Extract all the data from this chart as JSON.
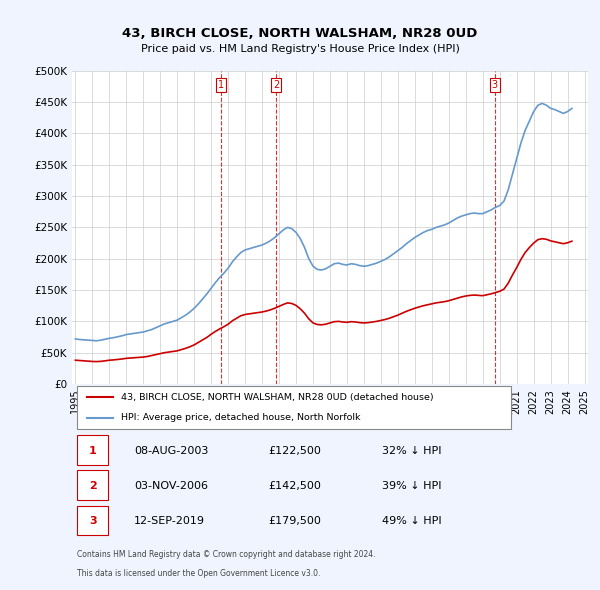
{
  "title": "43, BIRCH CLOSE, NORTH WALSHAM, NR28 0UD",
  "subtitle": "Price paid vs. HM Land Registry's House Price Index (HPI)",
  "legend_line1": "43, BIRCH CLOSE, NORTH WALSHAM, NR28 0UD (detached house)",
  "legend_line2": "HPI: Average price, detached house, North Norfolk",
  "footer1": "Contains HM Land Registry data © Crown copyright and database right 2024.",
  "footer2": "This data is licensed under the Open Government Licence v3.0.",
  "table": [
    {
      "num": "1",
      "date": "08-AUG-2003",
      "price": "£122,500",
      "pct": "32% ↓ HPI"
    },
    {
      "num": "2",
      "date": "03-NOV-2006",
      "price": "£142,500",
      "pct": "39% ↓ HPI"
    },
    {
      "num": "3",
      "date": "12-SEP-2019",
      "price": "£179,500",
      "pct": "49% ↓ HPI"
    }
  ],
  "sale_dates": [
    2003.597,
    2006.836,
    2019.702
  ],
  "sale_prices": [
    122500,
    142500,
    179500
  ],
  "hpi_years": [
    1995.0,
    1995.25,
    1995.5,
    1995.75,
    1996.0,
    1996.25,
    1996.5,
    1996.75,
    1997.0,
    1997.25,
    1997.5,
    1997.75,
    1998.0,
    1998.25,
    1998.5,
    1998.75,
    1999.0,
    1999.25,
    1999.5,
    1999.75,
    2000.0,
    2000.25,
    2000.5,
    2000.75,
    2001.0,
    2001.25,
    2001.5,
    2001.75,
    2002.0,
    2002.25,
    2002.5,
    2002.75,
    2003.0,
    2003.25,
    2003.5,
    2003.75,
    2004.0,
    2004.25,
    2004.5,
    2004.75,
    2005.0,
    2005.25,
    2005.5,
    2005.75,
    2006.0,
    2006.25,
    2006.5,
    2006.75,
    2007.0,
    2007.25,
    2007.5,
    2007.75,
    2008.0,
    2008.25,
    2008.5,
    2008.75,
    2009.0,
    2009.25,
    2009.5,
    2009.75,
    2010.0,
    2010.25,
    2010.5,
    2010.75,
    2011.0,
    2011.25,
    2011.5,
    2011.75,
    2012.0,
    2012.25,
    2012.5,
    2012.75,
    2013.0,
    2013.25,
    2013.5,
    2013.75,
    2014.0,
    2014.25,
    2014.5,
    2014.75,
    2015.0,
    2015.25,
    2015.5,
    2015.75,
    2016.0,
    2016.25,
    2016.5,
    2016.75,
    2017.0,
    2017.25,
    2017.5,
    2017.75,
    2018.0,
    2018.25,
    2018.5,
    2018.75,
    2019.0,
    2019.25,
    2019.5,
    2019.75,
    2020.0,
    2020.25,
    2020.5,
    2020.75,
    2021.0,
    2021.25,
    2021.5,
    2021.75,
    2022.0,
    2022.25,
    2022.5,
    2022.75,
    2023.0,
    2023.25,
    2023.5,
    2023.75,
    2024.0,
    2024.25
  ],
  "hpi_values": [
    72000,
    71000,
    70500,
    70000,
    69500,
    69000,
    70000,
    71500,
    73000,
    74000,
    75500,
    77000,
    79000,
    80000,
    81000,
    82000,
    83000,
    85000,
    87000,
    90000,
    93000,
    96000,
    98000,
    100000,
    102000,
    106000,
    110000,
    115000,
    121000,
    128000,
    136000,
    144000,
    153000,
    162000,
    170000,
    177000,
    185000,
    195000,
    203000,
    210000,
    214000,
    216000,
    218000,
    220000,
    222000,
    225000,
    229000,
    234000,
    240000,
    246000,
    250000,
    248000,
    242000,
    232000,
    218000,
    200000,
    188000,
    183000,
    182000,
    184000,
    188000,
    192000,
    193000,
    191000,
    190000,
    192000,
    191000,
    189000,
    188000,
    189000,
    191000,
    193000,
    196000,
    199000,
    203000,
    208000,
    213000,
    218000,
    224000,
    229000,
    234000,
    238000,
    242000,
    245000,
    247000,
    250000,
    252000,
    254000,
    257000,
    261000,
    265000,
    268000,
    270000,
    272000,
    273000,
    272000,
    272000,
    275000,
    278000,
    282000,
    285000,
    292000,
    310000,
    335000,
    360000,
    385000,
    405000,
    420000,
    435000,
    445000,
    448000,
    445000,
    440000,
    438000,
    435000,
    432000,
    435000,
    440000
  ],
  "red_years": [
    1995.0,
    1995.25,
    1995.5,
    1995.75,
    1996.0,
    1996.25,
    1996.5,
    1996.75,
    1997.0,
    1997.25,
    1997.5,
    1997.75,
    1998.0,
    1998.25,
    1998.5,
    1998.75,
    1999.0,
    1999.25,
    1999.5,
    1999.75,
    2000.0,
    2000.25,
    2000.5,
    2000.75,
    2001.0,
    2001.25,
    2001.5,
    2001.75,
    2002.0,
    2002.25,
    2002.5,
    2002.75,
    2003.0,
    2003.25,
    2003.5,
    2003.75,
    2004.0,
    2004.25,
    2004.5,
    2004.75,
    2005.0,
    2005.25,
    2005.5,
    2005.75,
    2006.0,
    2006.25,
    2006.5,
    2006.75,
    2007.0,
    2007.25,
    2007.5,
    2007.75,
    2008.0,
    2008.25,
    2008.5,
    2008.75,
    2009.0,
    2009.25,
    2009.5,
    2009.75,
    2010.0,
    2010.25,
    2010.5,
    2010.75,
    2011.0,
    2011.25,
    2011.5,
    2011.75,
    2012.0,
    2012.25,
    2012.5,
    2012.75,
    2013.0,
    2013.25,
    2013.5,
    2013.75,
    2014.0,
    2014.25,
    2014.5,
    2014.75,
    2015.0,
    2015.25,
    2015.5,
    2015.75,
    2016.0,
    2016.25,
    2016.5,
    2016.75,
    2017.0,
    2017.25,
    2017.5,
    2017.75,
    2018.0,
    2018.25,
    2018.5,
    2018.75,
    2019.0,
    2019.25,
    2019.5,
    2019.75,
    2020.0,
    2020.25,
    2020.5,
    2020.75,
    2021.0,
    2021.25,
    2021.5,
    2021.75,
    2022.0,
    2022.25,
    2022.5,
    2022.75,
    2023.0,
    2023.25,
    2023.5,
    2023.75,
    2024.0,
    2024.25
  ],
  "red_values": [
    38000,
    37500,
    37000,
    36500,
    36000,
    35800,
    36200,
    37000,
    38000,
    38500,
    39200,
    40000,
    41000,
    41500,
    42000,
    42500,
    43000,
    44000,
    45500,
    47000,
    48500,
    50000,
    51000,
    52000,
    53000,
    55000,
    57000,
    59500,
    62500,
    66500,
    70500,
    74500,
    79500,
    84000,
    88000,
    91500,
    95500,
    101000,
    105000,
    109000,
    111000,
    112000,
    113000,
    114000,
    115000,
    116500,
    118500,
    121000,
    124000,
    127000,
    129500,
    128500,
    125500,
    120000,
    113000,
    104000,
    97500,
    95000,
    94500,
    95500,
    97500,
    99500,
    100000,
    99000,
    98500,
    99500,
    99000,
    98000,
    97500,
    98000,
    99000,
    100000,
    101500,
    103000,
    105000,
    107500,
    110000,
    113000,
    116000,
    118500,
    121000,
    123000,
    125000,
    126500,
    128000,
    129500,
    130500,
    131500,
    133000,
    135000,
    137000,
    139000,
    140500,
    141500,
    142000,
    141500,
    141000,
    142500,
    144000,
    146000,
    148000,
    151500,
    161000,
    174000,
    186000,
    199000,
    210000,
    218000,
    225000,
    230500,
    232000,
    231000,
    228500,
    227000,
    225500,
    224000,
    225500,
    228000
  ],
  "ylim": [
    0,
    500000
  ],
  "yticks": [
    0,
    50000,
    100000,
    150000,
    200000,
    250000,
    300000,
    350000,
    400000,
    450000,
    500000
  ],
  "xtick_years": [
    1995,
    1996,
    1997,
    1998,
    1999,
    2000,
    2001,
    2002,
    2003,
    2004,
    2005,
    2006,
    2007,
    2008,
    2009,
    2010,
    2011,
    2012,
    2013,
    2014,
    2015,
    2016,
    2017,
    2018,
    2019,
    2020,
    2021,
    2022,
    2023,
    2024,
    2025
  ],
  "red_color": "#cc0000",
  "blue_color": "#6699cc",
  "vline_color": "#cc0000",
  "bg_color": "#f0f4ff",
  "plot_bg": "#ffffff",
  "grid_color": "#cccccc"
}
